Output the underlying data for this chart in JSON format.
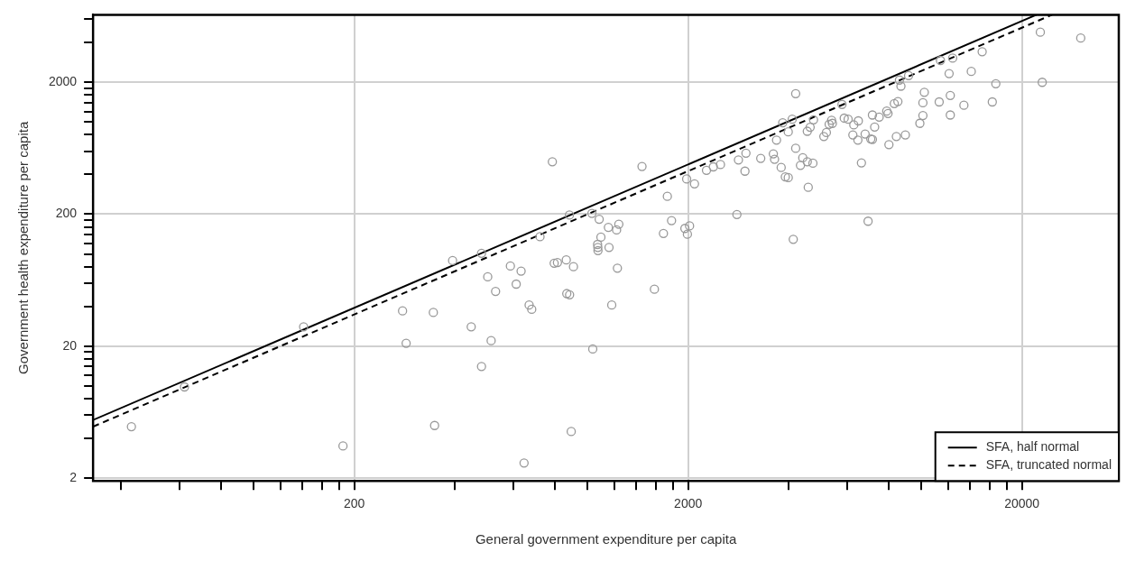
{
  "chart_data": {
    "type": "scatter",
    "xlabel": "General government expenditure per capita",
    "ylabel": "Government health expenditure per capita",
    "log": "xy",
    "grid": true,
    "legend": "bottom right",
    "xlim": [
      33,
      39000
    ],
    "ylim": [
      1.9,
      6500
    ],
    "xticks": [
      {
        "value": 40,
        "label": null
      },
      {
        "value": 60,
        "label": null
      },
      {
        "value": 80,
        "label": null
      },
      {
        "value": 100,
        "label": null
      },
      {
        "value": 120,
        "label": null
      },
      {
        "value": 140,
        "label": null
      },
      {
        "value": 160,
        "label": null
      },
      {
        "value": 180,
        "label": null
      },
      200,
      {
        "value": 400,
        "label": null
      },
      {
        "value": 600,
        "label": null
      },
      {
        "value": 800,
        "label": null
      },
      {
        "value": 1000,
        "label": null
      },
      {
        "value": 1200,
        "label": null
      },
      {
        "value": 1400,
        "label": null
      },
      {
        "value": 1600,
        "label": null
      },
      {
        "value": 1800,
        "label": null
      },
      2000,
      {
        "value": 4000,
        "label": null
      },
      {
        "value": 6000,
        "label": null
      },
      {
        "value": 8000,
        "label": null
      },
      {
        "value": 10000,
        "label": null
      },
      {
        "value": 12000,
        "label": null
      },
      {
        "value": 14000,
        "label": null
      },
      {
        "value": 16000,
        "label": null
      },
      {
        "value": 18000,
        "label": null
      },
      20000
    ],
    "yticks": [
      2,
      {
        "value": 4,
        "label": null
      },
      {
        "value": 6,
        "label": null
      },
      {
        "value": 8,
        "label": null
      },
      {
        "value": 10,
        "label": null
      },
      {
        "value": 12,
        "label": null
      },
      {
        "value": 14,
        "label": null
      },
      {
        "value": 16,
        "label": null
      },
      {
        "value": 18,
        "label": null
      },
      20,
      {
        "value": 40,
        "label": null
      },
      {
        "value": 60,
        "label": null
      },
      {
        "value": 80,
        "label": null
      },
      {
        "value": 100,
        "label": null
      },
      {
        "value": 120,
        "label": null
      },
      {
        "value": 140,
        "label": null
      },
      {
        "value": 160,
        "label": null
      },
      {
        "value": 180,
        "label": null
      },
      200,
      {
        "value": 400,
        "label": null
      },
      {
        "value": 600,
        "label": null
      },
      {
        "value": 800,
        "label": null
      },
      {
        "value": 1000,
        "label": null
      },
      {
        "value": 1200,
        "label": null
      },
      {
        "value": 1400,
        "label": null
      },
      {
        "value": 1600,
        "label": null
      },
      {
        "value": 1800,
        "label": null
      },
      2000,
      {
        "value": 4000,
        "label": null
      },
      {
        "value": 6000,
        "label": null
      }
    ],
    "series": [
      {
        "type": "scatter",
        "color": "#999999",
        "marker": "circle",
        "x": [
          43,
          62,
          141,
          185,
          279,
          286,
          345,
          348,
          394,
          448,
          481,
          481,
          502,
          514,
          530,
          587,
          611,
          632,
          645,
          668,
          680,
          720,
          784,
          794,
          812,
          863,
          866,
          883,
          882,
          893,
          907,
          1030,
          1036,
          1083,
          1096,
          1071,
          1073,
          1074,
          1154,
          1159,
          1181,
          1221,
          1240,
          1228,
          1455,
          1585,
          1687,
          1733,
          1784,
          1956,
          2020,
          1990,
          1980,
          2090,
          2270,
          2380,
          2500,
          2800,
          2830,
          2960,
          2980,
          3300,
          3600,
          3630,
          3680,
          3800,
          3910,
          3990,
          3840,
          4100,
          3990,
          4200,
          4200,
          4130,
          4410,
          4340,
          4550,
          4730,
          4580,
          4550,
          4640,
          4750,
          5100,
          5190,
          5290,
          5380,
          5410,
          5780,
          5870,
          6030,
          6270,
          6470,
          6230,
          6450,
          6610,
          6780,
          7050,
          7130,
          6920,
          7130,
          7240,
          7470,
          7870,
          7940,
          7990,
          8410,
          8290,
          8500,
          8590,
          8680,
          8950,
          9150,
          9890,
          10100,
          10100,
          10200,
          11300,
          11400,
          12100,
          12200,
          12200,
          12400,
          13400,
          14100,
          15200,
          16300,
          16700,
          22700,
          23000,
          30000
        ],
        "values": [
          4.9,
          9.8,
          28,
          3.5,
          37,
          21,
          36,
          5,
          89,
          28,
          101,
          14,
          67,
          22,
          52,
          81,
          59,
          74,
          2.6,
          41,
          38,
          135,
          500,
          85,
          86,
          90,
          50,
          49,
          197,
          4.5,
          80,
          203,
          19,
          183,
          134,
          118,
          112,
          106,
          159,
          112,
          41,
          152,
          168,
          78,
          460,
          54,
          143,
          273,
          179,
          156,
          163,
          141,
          370,
          340,
          430,
          457,
          476,
          199,
          516,
          424,
          580,
          530,
          574,
          522,
          729,
          452,
          384,
          379,
          987,
          1050,
          842,
          1640,
          632,
          129,
          536,
          469,
          500,
          487,
          320,
          851,
          912,
          1040,
          777,
          832,
          961,
          1030,
          977,
          1360,
          1070,
          1050,
          952,
          1020,
          798,
          729,
          490,
          811,
          744,
          738,
          177,
          1130,
          916,
          1090,
          1210,
          1160,
          674,
          777,
          1380,
          1430,
          2080,
          1870,
          798,
          2250,
          977,
          1120,
          1400,
          1680,
          1420,
          2930,
          2330,
          1590,
          1130,
          3050,
          1340,
          2420,
          3410,
          1420,
          1950,
          4800,
          2000,
          4330
        ]
      },
      {
        "type": "line",
        "name": "SFA, half normal",
        "color": "#000000",
        "line_style": "solid",
        "x": [
          33,
          22100
        ],
        "values": [
          5.5,
          6500
        ]
      },
      {
        "type": "line",
        "name": "SFA, truncated normal",
        "color": "#000000",
        "line_style": "dashed",
        "x": [
          33,
          24600
        ],
        "values": [
          4.9,
          6500
        ]
      }
    ]
  }
}
